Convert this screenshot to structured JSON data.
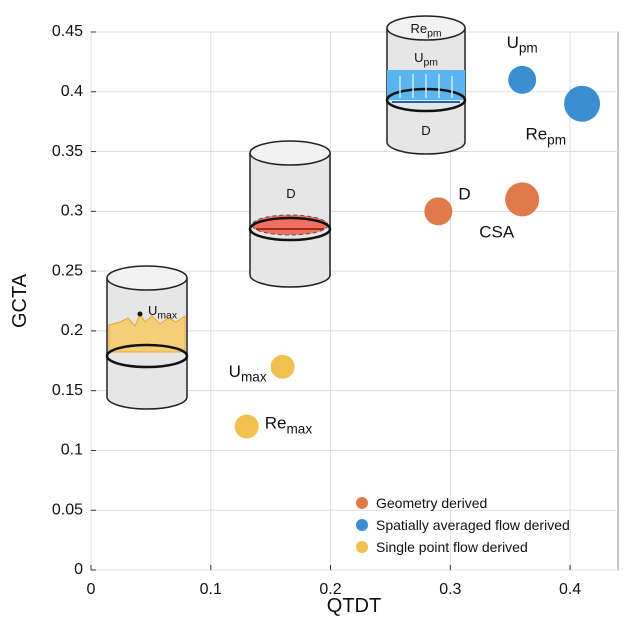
{
  "chart_data": {
    "type": "scatter",
    "x_label": "QTDT",
    "y_label": "GCTA",
    "xlim": [
      0,
      0.44
    ],
    "ylim": [
      0,
      0.45
    ],
    "xticks": [
      0,
      0.1,
      0.2,
      0.3,
      0.4
    ],
    "yticks": [
      0,
      0.05,
      0.1,
      0.15,
      0.2,
      0.25,
      0.3,
      0.35,
      0.4,
      0.45
    ],
    "grid": true,
    "legend_position": "lower right",
    "series": [
      {
        "name": "Geometry derived",
        "color": "#e07a4b",
        "x": [
          0.29,
          0.36
        ],
        "values": [
          0.3,
          0.31
        ],
        "sizes": [
          14,
          17
        ],
        "labels": [
          {
            "text": "D"
          },
          {
            "text": "CSA"
          }
        ]
      },
      {
        "name": "Spatially averaged flow derived",
        "color": "#3b8fd1",
        "x": [
          0.36,
          0.41
        ],
        "values": [
          0.41,
          0.39
        ],
        "sizes": [
          14,
          18
        ],
        "labels": [
          {
            "text": "U",
            "sub": "pm"
          },
          {
            "text": "Re",
            "sub": "pm"
          }
        ]
      },
      {
        "name": "Single point flow derived",
        "color": "#f1c04f",
        "x": [
          0.16,
          0.13
        ],
        "values": [
          0.17,
          0.12
        ],
        "sizes": [
          12,
          12
        ],
        "labels": [
          {
            "text": "U",
            "sub": "max"
          },
          {
            "text": "Re",
            "sub": "max"
          }
        ]
      }
    ],
    "annotations": [
      {
        "text": "Re",
        "sub": "pm"
      },
      {
        "text": "U",
        "sub": "pm"
      },
      {
        "text": "D"
      },
      {
        "text": "D"
      },
      {
        "text": "U",
        "sub": "max"
      }
    ]
  }
}
